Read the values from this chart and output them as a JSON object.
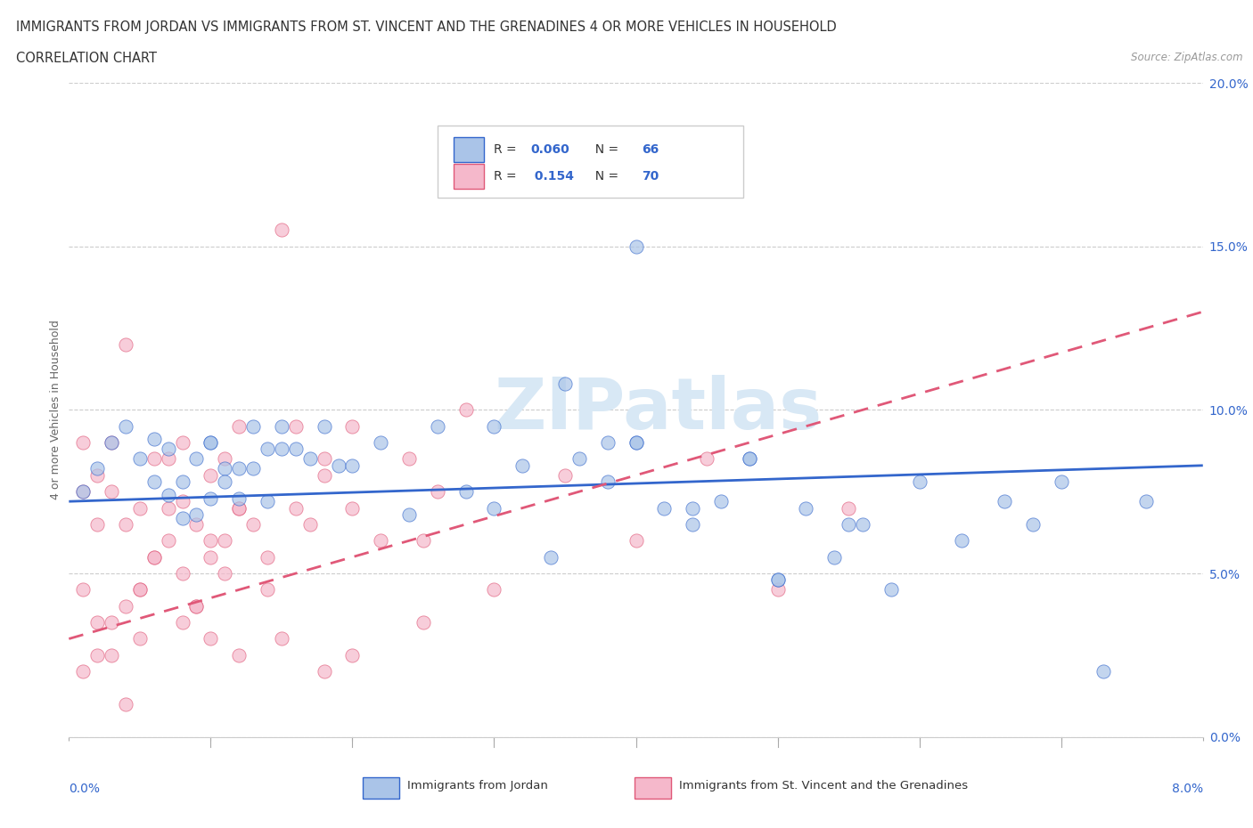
{
  "title_line1": "IMMIGRANTS FROM JORDAN VS IMMIGRANTS FROM ST. VINCENT AND THE GRENADINES 4 OR MORE VEHICLES IN HOUSEHOLD",
  "title_line2": "CORRELATION CHART",
  "source_text": "Source: ZipAtlas.com",
  "ylabel": "4 or more Vehicles in Household",
  "legend1_label": "Immigrants from Jordan",
  "legend2_label": "Immigrants from St. Vincent and the Grenadines",
  "r1": 0.06,
  "n1": 66,
  "r2": 0.154,
  "n2": 70,
  "color_jordan": "#aac4e8",
  "color_stv": "#f5b8cb",
  "color_jordan_line": "#3366cc",
  "color_stv_line": "#e05878",
  "watermark": "ZIPatlas",
  "xlim": [
    0.0,
    0.08
  ],
  "ylim": [
    0.0,
    0.2
  ],
  "yticks": [
    0.0,
    0.05,
    0.1,
    0.15,
    0.2
  ],
  "ytick_labels": [
    "0.0%",
    "5.0%",
    "10.0%",
    "15.0%",
    "20.0%"
  ],
  "jordan_x": [
    0.001,
    0.002,
    0.003,
    0.004,
    0.005,
    0.006,
    0.007,
    0.008,
    0.009,
    0.01,
    0.011,
    0.012,
    0.013,
    0.014,
    0.015,
    0.006,
    0.007,
    0.008,
    0.01,
    0.012,
    0.013,
    0.014,
    0.015,
    0.016,
    0.017,
    0.009,
    0.01,
    0.011,
    0.018,
    0.019,
    0.02,
    0.022,
    0.024,
    0.026,
    0.028,
    0.03,
    0.032,
    0.034,
    0.036,
    0.038,
    0.04,
    0.042,
    0.044,
    0.046,
    0.048,
    0.05,
    0.052,
    0.054,
    0.056,
    0.058,
    0.03,
    0.035,
    0.038,
    0.04,
    0.044,
    0.048,
    0.05,
    0.055,
    0.04,
    0.06,
    0.063,
    0.066,
    0.068,
    0.07,
    0.073,
    0.076
  ],
  "jordan_y": [
    0.075,
    0.082,
    0.09,
    0.095,
    0.085,
    0.091,
    0.088,
    0.078,
    0.085,
    0.09,
    0.082,
    0.082,
    0.095,
    0.088,
    0.088,
    0.078,
    0.074,
    0.067,
    0.09,
    0.073,
    0.082,
    0.072,
    0.095,
    0.088,
    0.085,
    0.068,
    0.073,
    0.078,
    0.095,
    0.083,
    0.083,
    0.09,
    0.068,
    0.095,
    0.075,
    0.07,
    0.083,
    0.055,
    0.085,
    0.078,
    0.09,
    0.07,
    0.065,
    0.072,
    0.085,
    0.048,
    0.07,
    0.055,
    0.065,
    0.045,
    0.095,
    0.108,
    0.09,
    0.09,
    0.07,
    0.085,
    0.048,
    0.065,
    0.15,
    0.078,
    0.06,
    0.072,
    0.065,
    0.078,
    0.02,
    0.072
  ],
  "stv_x": [
    0.001,
    0.001,
    0.002,
    0.002,
    0.003,
    0.003,
    0.004,
    0.004,
    0.005,
    0.005,
    0.006,
    0.006,
    0.007,
    0.007,
    0.008,
    0.008,
    0.009,
    0.009,
    0.01,
    0.01,
    0.011,
    0.011,
    0.012,
    0.012,
    0.001,
    0.002,
    0.003,
    0.004,
    0.005,
    0.006,
    0.007,
    0.008,
    0.009,
    0.01,
    0.011,
    0.012,
    0.013,
    0.014,
    0.015,
    0.016,
    0.017,
    0.018,
    0.014,
    0.016,
    0.018,
    0.02,
    0.022,
    0.024,
    0.026,
    0.028,
    0.001,
    0.002,
    0.003,
    0.004,
    0.02,
    0.025,
    0.03,
    0.035,
    0.04,
    0.045,
    0.05,
    0.055,
    0.005,
    0.008,
    0.01,
    0.012,
    0.015,
    0.018,
    0.02,
    0.025
  ],
  "stv_y": [
    0.075,
    0.09,
    0.065,
    0.08,
    0.09,
    0.075,
    0.065,
    0.12,
    0.045,
    0.07,
    0.055,
    0.085,
    0.07,
    0.06,
    0.09,
    0.072,
    0.04,
    0.065,
    0.08,
    0.06,
    0.085,
    0.05,
    0.07,
    0.095,
    0.045,
    0.035,
    0.025,
    0.04,
    0.045,
    0.055,
    0.085,
    0.05,
    0.04,
    0.055,
    0.06,
    0.07,
    0.065,
    0.045,
    0.155,
    0.07,
    0.065,
    0.085,
    0.055,
    0.095,
    0.08,
    0.095,
    0.06,
    0.085,
    0.075,
    0.1,
    0.02,
    0.025,
    0.035,
    0.01,
    0.07,
    0.06,
    0.045,
    0.08,
    0.06,
    0.085,
    0.045,
    0.07,
    0.03,
    0.035,
    0.03,
    0.025,
    0.03,
    0.02,
    0.025,
    0.035
  ],
  "jordan_line_x": [
    0.0,
    0.08
  ],
  "jordan_line_y": [
    0.072,
    0.083
  ],
  "stv_line_x": [
    0.0,
    0.08
  ],
  "stv_line_y": [
    0.03,
    0.13
  ]
}
